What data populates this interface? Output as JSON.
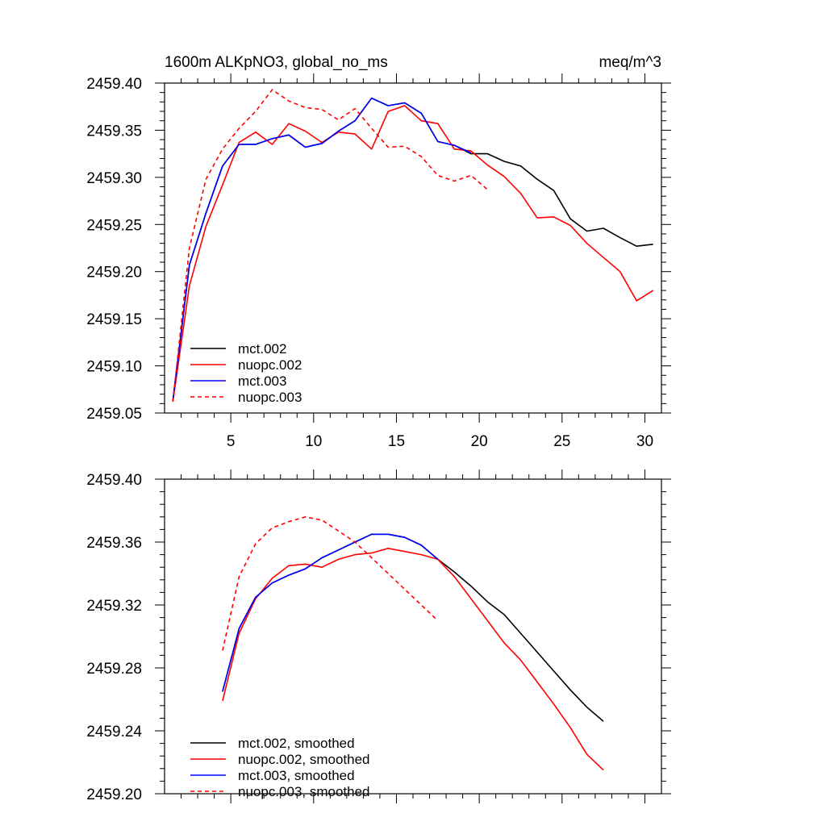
{
  "chart_data": [
    {
      "type": "line",
      "title_left": "1600m ALKpNO3, global_no_ms",
      "title_right": "meq/m^3",
      "xlabel": "",
      "ylabel": "",
      "xlim": [
        1,
        31
      ],
      "ylim": [
        2459.05,
        2459.4
      ],
      "x_ticks": [
        5,
        10,
        15,
        20,
        25,
        30
      ],
      "x_tick_labels": [
        "5",
        "10",
        "15",
        "20",
        "25",
        "30"
      ],
      "y_ticks": [
        2459.05,
        2459.1,
        2459.15,
        2459.2,
        2459.25,
        2459.3,
        2459.35,
        2459.4
      ],
      "y_tick_labels": [
        "2459.05",
        "2459.10",
        "2459.15",
        "2459.20",
        "2459.25",
        "2459.30",
        "2459.35",
        "2459.40"
      ],
      "grid": false,
      "legend_position": "bottom-left",
      "series": [
        {
          "name": "mct.002",
          "color": "#000000",
          "dash": "solid",
          "x": [
            1.5,
            2.5,
            3.5,
            4.5,
            5.5,
            6.5,
            7.5,
            8.5,
            9.5,
            10.5,
            11.5,
            12.5,
            13.5,
            14.5,
            15.5,
            16.5,
            17.5,
            18.5,
            19.5,
            20.5,
            21.5,
            22.5,
            23.5,
            24.5,
            25.5,
            26.5,
            27.5,
            28.5,
            29.5,
            30.5
          ],
          "y": [
            2459.063,
            2459.207,
            2459.262,
            2459.312,
            2459.335,
            2459.335,
            2459.341,
            2459.345,
            2459.332,
            2459.336,
            2459.349,
            2459.36,
            2459.384,
            2459.376,
            2459.379,
            2459.368,
            2459.338,
            2459.334,
            2459.325,
            2459.325,
            2459.317,
            2459.312,
            2459.298,
            2459.286,
            2459.256,
            2459.243,
            2459.246,
            2459.236,
            2459.227,
            2459.229
          ]
        },
        {
          "name": "nuopc.002",
          "color": "#ff0000",
          "dash": "solid",
          "x": [
            1.5,
            2.5,
            3.5,
            4.5,
            5.5,
            6.5,
            7.5,
            8.5,
            9.5,
            10.5,
            11.5,
            12.5,
            13.5,
            14.5,
            15.5,
            16.5,
            17.5,
            18.5,
            19.5,
            20.5,
            21.5,
            22.5,
            23.5,
            24.5,
            25.5,
            26.5,
            27.5,
            28.5,
            29.5,
            30.5
          ],
          "y": [
            2459.062,
            2459.185,
            2459.248,
            2459.292,
            2459.337,
            2459.348,
            2459.335,
            2459.357,
            2459.349,
            2459.337,
            2459.348,
            2459.346,
            2459.33,
            2459.37,
            2459.376,
            2459.36,
            2459.357,
            2459.33,
            2459.328,
            2459.313,
            2459.301,
            2459.283,
            2459.257,
            2459.258,
            2459.249,
            2459.23,
            2459.215,
            2459.2,
            2459.169,
            2459.18
          ]
        },
        {
          "name": "mct.003",
          "color": "#0000ff",
          "dash": "solid",
          "x": [
            1.5,
            2.5,
            3.5,
            4.5,
            5.5,
            6.5,
            7.5,
            8.5,
            9.5,
            10.5,
            11.5,
            12.5,
            13.5,
            14.5,
            15.5,
            16.5,
            17.5,
            18.5,
            19.5
          ],
          "y": [
            2459.063,
            2459.207,
            2459.262,
            2459.312,
            2459.335,
            2459.335,
            2459.341,
            2459.345,
            2459.332,
            2459.336,
            2459.349,
            2459.36,
            2459.384,
            2459.376,
            2459.379,
            2459.368,
            2459.338,
            2459.334,
            2459.326
          ]
        },
        {
          "name": "nuopc.003",
          "color": "#ff0000",
          "dash": "dashed",
          "x": [
            1.5,
            2.5,
            3.5,
            4.5,
            5.5,
            6.5,
            7.5,
            8.5,
            9.5,
            10.5,
            11.5,
            12.5,
            13.5,
            14.5,
            15.5,
            16.5,
            17.5,
            18.5,
            19.5,
            20.5
          ],
          "y": [
            2459.062,
            2459.225,
            2459.298,
            2459.33,
            2459.352,
            2459.37,
            2459.393,
            2459.381,
            2459.374,
            2459.372,
            2459.361,
            2459.373,
            2459.352,
            2459.332,
            2459.333,
            2459.322,
            2459.302,
            2459.296,
            2459.302,
            2459.287
          ]
        }
      ]
    },
    {
      "type": "line",
      "title_left": "",
      "title_right": "",
      "xlabel": "",
      "ylabel": "",
      "xlim": [
        1,
        31
      ],
      "ylim": [
        2459.2,
        2459.4
      ],
      "x_ticks": [
        5,
        10,
        15,
        20,
        25,
        30
      ],
      "x_tick_labels": [],
      "y_ticks": [
        2459.2,
        2459.24,
        2459.28,
        2459.32,
        2459.36,
        2459.4
      ],
      "y_tick_labels": [
        "2459.20",
        "2459.24",
        "2459.28",
        "2459.32",
        "2459.36",
        "2459.40"
      ],
      "grid": false,
      "legend_position": "bottom-left",
      "series": [
        {
          "name": "mct.002, smoothed",
          "color": "#000000",
          "dash": "solid",
          "x": [
            4.5,
            5.5,
            6.5,
            7.5,
            8.5,
            9.5,
            10.5,
            11.5,
            12.5,
            13.5,
            14.5,
            15.5,
            16.5,
            17.5,
            18.5,
            19.5,
            20.5,
            21.5,
            22.5,
            23.5,
            24.5,
            25.5,
            26.5,
            27.5
          ],
          "y": [
            2459.265,
            2459.305,
            2459.325,
            2459.334,
            2459.339,
            2459.343,
            2459.35,
            2459.355,
            2459.36,
            2459.365,
            2459.365,
            2459.363,
            2459.358,
            2459.349,
            2459.341,
            2459.332,
            2459.322,
            2459.314,
            2459.302,
            2459.29,
            2459.278,
            2459.266,
            2459.255,
            2459.246
          ]
        },
        {
          "name": "nuopc.002, smoothed",
          "color": "#ff0000",
          "dash": "solid",
          "x": [
            4.5,
            5.5,
            6.5,
            7.5,
            8.5,
            9.5,
            10.5,
            11.5,
            12.5,
            13.5,
            14.5,
            15.5,
            16.5,
            17.5,
            18.5,
            19.5,
            20.5,
            21.5,
            22.5,
            23.5,
            24.5,
            25.5,
            26.5,
            27.5
          ],
          "y": [
            2459.259,
            2459.302,
            2459.324,
            2459.337,
            2459.345,
            2459.346,
            2459.344,
            2459.349,
            2459.352,
            2459.353,
            2459.356,
            2459.354,
            2459.352,
            2459.349,
            2459.338,
            2459.324,
            2459.31,
            2459.296,
            2459.285,
            2459.271,
            2459.257,
            2459.242,
            2459.225,
            2459.215
          ]
        },
        {
          "name": "mct.003, smoothed",
          "color": "#0000ff",
          "dash": "solid",
          "x": [
            4.5,
            5.5,
            6.5,
            7.5,
            8.5,
            9.5,
            10.5,
            11.5,
            12.5,
            13.5,
            14.5,
            15.5,
            16.5,
            17.5
          ],
          "y": [
            2459.265,
            2459.305,
            2459.325,
            2459.334,
            2459.339,
            2459.343,
            2459.35,
            2459.355,
            2459.36,
            2459.365,
            2459.365,
            2459.363,
            2459.358,
            2459.349
          ]
        },
        {
          "name": "nuopc.003, smoothed",
          "color": "#ff0000",
          "dash": "dashed",
          "x": [
            4.5,
            5.5,
            6.5,
            7.5,
            8.5,
            9.5,
            10.5,
            11.5,
            12.5,
            13.5,
            14.5,
            15.5,
            16.5,
            17.5
          ],
          "y": [
            2459.291,
            2459.338,
            2459.359,
            2459.369,
            2459.373,
            2459.376,
            2459.374,
            2459.367,
            2459.36,
            2459.35,
            2459.34,
            2459.33,
            2459.32,
            2459.31
          ]
        }
      ]
    }
  ]
}
